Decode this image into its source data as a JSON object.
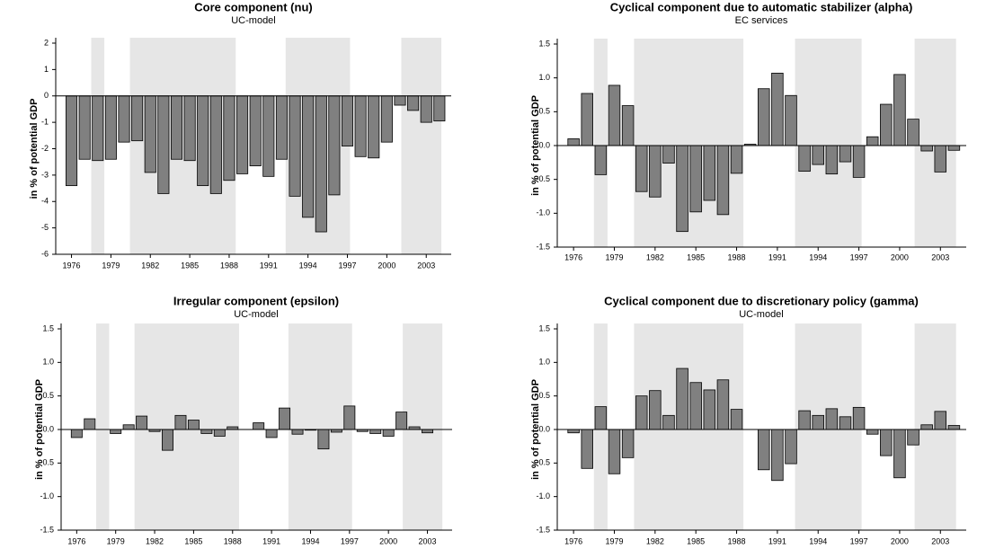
{
  "chart_data": [
    {
      "type": "bar",
      "title": "Core component (nu)",
      "subtitle": "UC-model",
      "ylabel": "in % of potential GDP",
      "x": [
        1976,
        1977,
        1978,
        1979,
        1980,
        1981,
        1982,
        1983,
        1984,
        1985,
        1986,
        1987,
        1988,
        1989,
        1990,
        1991,
        1992,
        1993,
        1994,
        1995,
        1996,
        1997,
        1998,
        1999,
        2000,
        2001,
        2002,
        2003,
        2004
      ],
      "values": [
        -3.4,
        -2.4,
        -2.45,
        -2.4,
        -1.75,
        -1.7,
        -2.9,
        -3.7,
        -2.4,
        -2.45,
        -3.4,
        -3.7,
        -3.2,
        -2.95,
        -2.65,
        -3.05,
        -2.4,
        -3.8,
        -4.6,
        -5.15,
        -3.75,
        -1.9,
        -2.3,
        -2.35,
        -1.75,
        -0.35,
        -0.55,
        -1.0,
        -0.95
      ],
      "color": "#808080",
      "shade_color": "#e6e6e6",
      "shaded_spans": [
        [
          1977.5,
          1978.5
        ],
        [
          1980.45,
          1988.5
        ],
        [
          1992.3,
          1997.2
        ],
        [
          2001.1,
          2004.15
        ]
      ],
      "xlim": [
        1974.8,
        2004.9
      ],
      "xticks": [
        1976,
        1979,
        1982,
        1985,
        1988,
        1991,
        1994,
        1997,
        2000,
        2003
      ],
      "ylim": [
        -6,
        2
      ],
      "yticks": [
        -6,
        -5,
        -4,
        -3,
        -2,
        -1,
        0,
        1,
        2
      ]
    },
    {
      "type": "bar",
      "title": "Cyclical component due to automatic stabilizer (alpha)",
      "subtitle": "EC services",
      "ylabel": "in % of potential GDP",
      "x": [
        1976,
        1977,
        1978,
        1979,
        1980,
        1981,
        1982,
        1983,
        1984,
        1985,
        1986,
        1987,
        1988,
        1989,
        1990,
        1991,
        1992,
        1993,
        1994,
        1995,
        1996,
        1997,
        1998,
        1999,
        2000,
        2001,
        2002,
        2003,
        2004
      ],
      "values": [
        0.1,
        0.77,
        -0.43,
        0.89,
        0.59,
        -0.68,
        -0.76,
        -0.26,
        -1.27,
        -0.98,
        -0.81,
        -1.02,
        -0.41,
        0.02,
        0.84,
        1.07,
        0.74,
        -0.38,
        -0.28,
        -0.42,
        -0.24,
        -0.47,
        0.13,
        0.61,
        1.05,
        0.39,
        -0.08,
        -0.39,
        -0.07
      ],
      "color": "#808080",
      "shade_color": "#e6e6e6",
      "shaded_spans": [
        [
          1977.5,
          1978.5
        ],
        [
          1980.45,
          1988.5
        ],
        [
          1992.3,
          1997.2
        ],
        [
          2001.1,
          2004.15
        ]
      ],
      "xlim": [
        1974.8,
        2004.9
      ],
      "xticks": [
        1976,
        1979,
        1982,
        1985,
        1988,
        1991,
        1994,
        1997,
        2000,
        2003
      ],
      "ylim": [
        -1.5,
        1.5
      ],
      "yticks": [
        {
          "value": -1.5,
          "label": "-1.5"
        },
        {
          "value": -1,
          "label": "-1.0"
        },
        {
          "value": -0.5,
          "label": "-0.5"
        },
        {
          "value": 0,
          "label": "0.0"
        },
        {
          "value": 0.5,
          "label": "0.5"
        },
        {
          "value": 1,
          "label": "1.0"
        },
        {
          "value": 1.5,
          "label": "1.5"
        }
      ]
    },
    {
      "type": "bar",
      "title": "Irregular component (epsilon)",
      "subtitle": "UC-model",
      "ylabel": "in % of potential GDP",
      "x": [
        1976,
        1977,
        1978,
        1979,
        1980,
        1981,
        1982,
        1983,
        1984,
        1985,
        1986,
        1987,
        1988,
        1989,
        1990,
        1991,
        1992,
        1993,
        1994,
        1995,
        1996,
        1997,
        1998,
        1999,
        2000,
        2001,
        2002,
        2003,
        2004
      ],
      "values": [
        -0.12,
        0.16,
        0,
        -0.06,
        0.07,
        0.2,
        -0.03,
        -0.31,
        0.21,
        0.14,
        -0.06,
        -0.1,
        0.04,
        0,
        0.1,
        -0.12,
        0.32,
        -0.07,
        -0.01,
        -0.29,
        -0.04,
        0.35,
        -0.03,
        -0.06,
        -0.1,
        0.26,
        0.04,
        -0.05,
        0
      ],
      "color": "#808080",
      "shade_color": "#e6e6e6",
      "shaded_spans": [
        [
          1977.5,
          1978.5
        ],
        [
          1980.45,
          1988.5
        ],
        [
          1992.3,
          1997.2
        ],
        [
          2001.1,
          2004.15
        ]
      ],
      "xlim": [
        1974.8,
        2004.9
      ],
      "xticks": [
        1976,
        1979,
        1982,
        1985,
        1988,
        1991,
        1994,
        1997,
        2000,
        2003
      ],
      "ylim": [
        -1.5,
        1.5
      ],
      "yticks": [
        {
          "value": -1.5,
          "label": "-1.5"
        },
        {
          "value": -1,
          "label": "-1.0"
        },
        {
          "value": -0.5,
          "label": "-0.5"
        },
        {
          "value": 0,
          "label": "0.0"
        },
        {
          "value": 0.5,
          "label": "0.5"
        },
        {
          "value": 1,
          "label": "1.0"
        },
        {
          "value": 1.5,
          "label": "1.5"
        }
      ]
    },
    {
      "type": "bar",
      "title": "Cyclical component due to discretionary policy (gamma)",
      "subtitle": "UC-model",
      "ylabel": "in % of potential GDP",
      "x": [
        1976,
        1977,
        1978,
        1979,
        1980,
        1981,
        1982,
        1983,
        1984,
        1985,
        1986,
        1987,
        1988,
        1989,
        1990,
        1991,
        1992,
        1993,
        1994,
        1995,
        1996,
        1997,
        1998,
        1999,
        2000,
        2001,
        2002,
        2003,
        2004
      ],
      "values": [
        -0.05,
        -0.58,
        0.34,
        -0.66,
        -0.42,
        0.5,
        0.58,
        0.21,
        0.91,
        0.7,
        0.59,
        0.74,
        0.3,
        0,
        -0.6,
        -0.76,
        -0.51,
        0.28,
        0.21,
        0.31,
        0.19,
        0.33,
        -0.07,
        -0.39,
        -0.72,
        -0.23,
        0.07,
        0.27,
        0.06
      ],
      "color": "#808080",
      "shade_color": "#e6e6e6",
      "shaded_spans": [
        [
          1977.5,
          1978.5
        ],
        [
          1980.45,
          1988.5
        ],
        [
          1992.3,
          1997.2
        ],
        [
          2001.1,
          2004.15
        ]
      ],
      "xlim": [
        1974.8,
        2004.9
      ],
      "xticks": [
        1976,
        1979,
        1982,
        1985,
        1988,
        1991,
        1994,
        1997,
        2000,
        2003
      ],
      "ylim": [
        -1.5,
        1.5
      ],
      "yticks": [
        {
          "value": -1.5,
          "label": "-1.5"
        },
        {
          "value": -1,
          "label": "-1.0"
        },
        {
          "value": -0.5,
          "label": "-0.5"
        },
        {
          "value": 0,
          "label": "0.0"
        },
        {
          "value": 0.5,
          "label": "0.5"
        },
        {
          "value": 1,
          "label": "1.0"
        },
        {
          "value": 1.5,
          "label": "1.5"
        }
      ]
    }
  ]
}
